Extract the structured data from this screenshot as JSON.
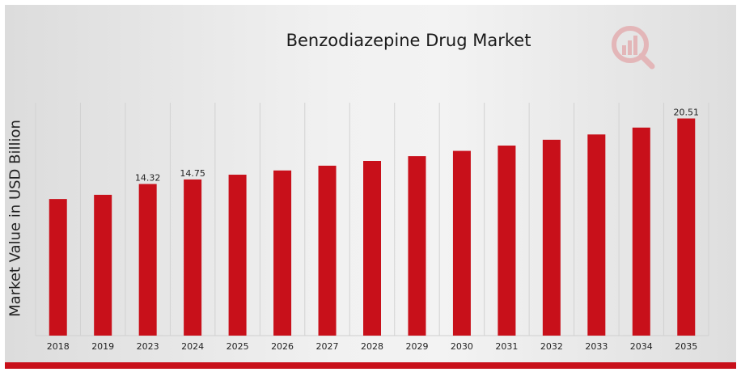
{
  "chart_data": {
    "type": "bar",
    "title": "Benzodiazepine Drug Market",
    "xlabel": "",
    "ylabel": "Market Value in USD Billion",
    "categories": [
      "2018",
      "2019",
      "2023",
      "2024",
      "2025",
      "2026",
      "2027",
      "2028",
      "2029",
      "2030",
      "2031",
      "2032",
      "2033",
      "2034",
      "2035"
    ],
    "values": [
      12.9,
      13.3,
      14.32,
      14.75,
      15.2,
      15.6,
      16.05,
      16.5,
      16.95,
      17.45,
      17.95,
      18.5,
      19.0,
      19.65,
      20.51
    ],
    "data_labels": {
      "2": "14.32",
      "3": "14.75",
      "14": "20.51"
    },
    "ylim": [
      0,
      22.0
    ],
    "grid": "vertical",
    "legend": "none",
    "bar_color": "#c8101a"
  }
}
